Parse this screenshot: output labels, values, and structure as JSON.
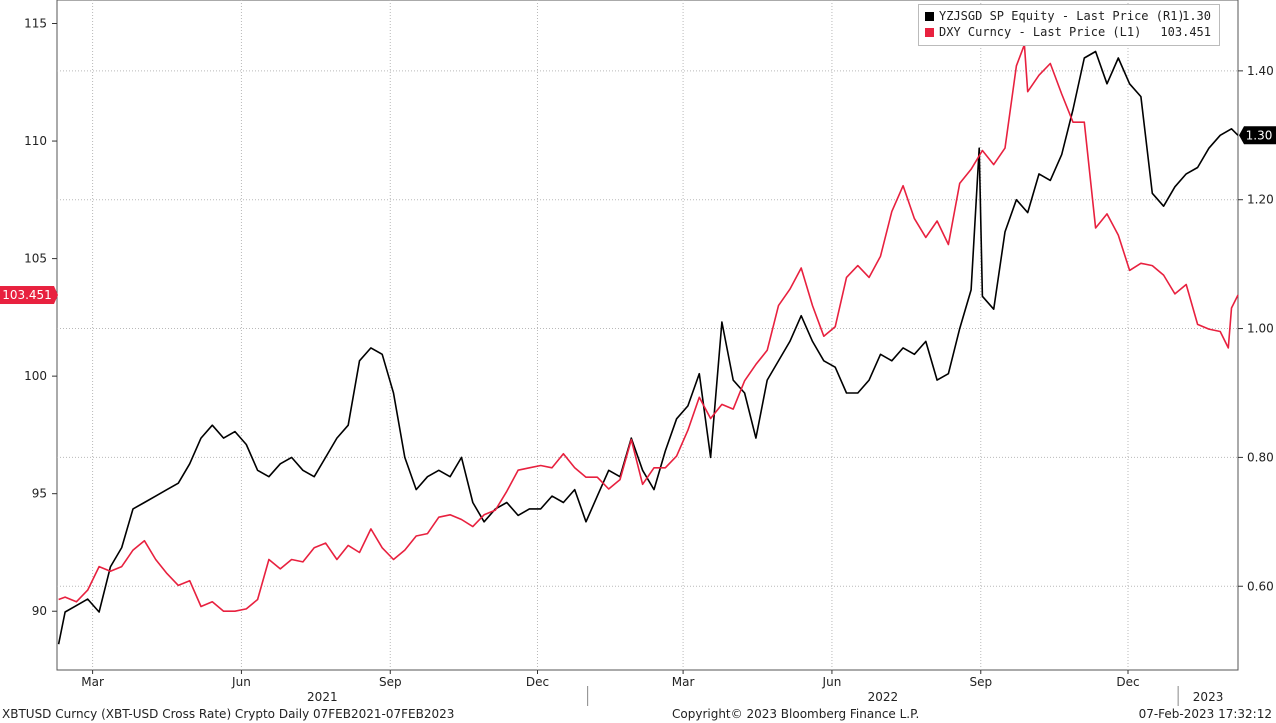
{
  "chart_data": {
    "type": "line",
    "title": "",
    "x_range": [
      "2021-02-07",
      "2023-02-07"
    ],
    "left_axis": {
      "min": 87.5,
      "max": 116,
      "ticks": [
        90,
        95,
        100,
        105,
        110,
        115
      ]
    },
    "right_axis": {
      "min": 0.47,
      "max": 1.51,
      "ticks": [
        0.6,
        0.8,
        1.0,
        1.2,
        1.4
      ]
    },
    "x_month_labels": [
      "Mar",
      "Jun",
      "Sep",
      "Dec",
      "Mar",
      "Jun",
      "Sep",
      "Dec"
    ],
    "x_year_labels": [
      "2021",
      "2022",
      "2023"
    ],
    "grid": true,
    "legend_position": "top-right",
    "last_value_tags": {
      "dxy": "103.451",
      "yzjsgd": "1.30"
    },
    "series": [
      {
        "name": "YZJSGD SP Equity - Last Price (R1)",
        "axis": "right",
        "color": "#000000",
        "last_label": "1.30",
        "points": [
          [
            "2021-02-08",
            0.51
          ],
          [
            "2021-02-12",
            0.56
          ],
          [
            "2021-02-19",
            0.57
          ],
          [
            "2021-02-26",
            0.58
          ],
          [
            "2021-03-05",
            0.56
          ],
          [
            "2021-03-12",
            0.63
          ],
          [
            "2021-03-19",
            0.66
          ],
          [
            "2021-03-26",
            0.72
          ],
          [
            "2021-04-02",
            0.73
          ],
          [
            "2021-04-09",
            0.74
          ],
          [
            "2021-04-16",
            0.75
          ],
          [
            "2021-04-23",
            0.76
          ],
          [
            "2021-04-30",
            0.79
          ],
          [
            "2021-05-07",
            0.83
          ],
          [
            "2021-05-14",
            0.85
          ],
          [
            "2021-05-21",
            0.83
          ],
          [
            "2021-05-28",
            0.84
          ],
          [
            "2021-06-04",
            0.82
          ],
          [
            "2021-06-11",
            0.78
          ],
          [
            "2021-06-18",
            0.77
          ],
          [
            "2021-06-25",
            0.79
          ],
          [
            "2021-07-02",
            0.8
          ],
          [
            "2021-07-09",
            0.78
          ],
          [
            "2021-07-16",
            0.77
          ],
          [
            "2021-07-23",
            0.8
          ],
          [
            "2021-07-30",
            0.83
          ],
          [
            "2021-08-06",
            0.85
          ],
          [
            "2021-08-13",
            0.95
          ],
          [
            "2021-08-20",
            0.97
          ],
          [
            "2021-08-27",
            0.96
          ],
          [
            "2021-09-03",
            0.9
          ],
          [
            "2021-09-10",
            0.8
          ],
          [
            "2021-09-17",
            0.75
          ],
          [
            "2021-09-24",
            0.77
          ],
          [
            "2021-10-01",
            0.78
          ],
          [
            "2021-10-08",
            0.77
          ],
          [
            "2021-10-15",
            0.8
          ],
          [
            "2021-10-22",
            0.73
          ],
          [
            "2021-10-29",
            0.7
          ],
          [
            "2021-11-05",
            0.72
          ],
          [
            "2021-11-12",
            0.73
          ],
          [
            "2021-11-19",
            0.71
          ],
          [
            "2021-11-26",
            0.72
          ],
          [
            "2021-12-03",
            0.72
          ],
          [
            "2021-12-10",
            0.74
          ],
          [
            "2021-12-17",
            0.73
          ],
          [
            "2021-12-24",
            0.75
          ],
          [
            "2021-12-31",
            0.7
          ],
          [
            "2022-01-07",
            0.74
          ],
          [
            "2022-01-14",
            0.78
          ],
          [
            "2022-01-21",
            0.77
          ],
          [
            "2022-01-28",
            0.83
          ],
          [
            "2022-02-04",
            0.78
          ],
          [
            "2022-02-11",
            0.75
          ],
          [
            "2022-02-18",
            0.81
          ],
          [
            "2022-02-25",
            0.86
          ],
          [
            "2022-03-04",
            0.88
          ],
          [
            "2022-03-11",
            0.93
          ],
          [
            "2022-03-18",
            0.8
          ],
          [
            "2022-03-25",
            1.01
          ],
          [
            "2022-04-01",
            0.92
          ],
          [
            "2022-04-08",
            0.9
          ],
          [
            "2022-04-15",
            0.83
          ],
          [
            "2022-04-22",
            0.92
          ],
          [
            "2022-05-06",
            0.98
          ],
          [
            "2022-05-13",
            1.02
          ],
          [
            "2022-05-20",
            0.98
          ],
          [
            "2022-05-27",
            0.95
          ],
          [
            "2022-06-03",
            0.94
          ],
          [
            "2022-06-10",
            0.9
          ],
          [
            "2022-06-17",
            0.9
          ],
          [
            "2022-06-24",
            0.92
          ],
          [
            "2022-07-01",
            0.96
          ],
          [
            "2022-07-08",
            0.95
          ],
          [
            "2022-07-15",
            0.97
          ],
          [
            "2022-07-22",
            0.96
          ],
          [
            "2022-07-29",
            0.98
          ],
          [
            "2022-08-05",
            0.92
          ],
          [
            "2022-08-12",
            0.93
          ],
          [
            "2022-08-19",
            1.0
          ],
          [
            "2022-08-26",
            1.06
          ],
          [
            "2022-08-31",
            1.28
          ],
          [
            "2022-09-02",
            1.05
          ],
          [
            "2022-09-09",
            1.03
          ],
          [
            "2022-09-16",
            1.15
          ],
          [
            "2022-09-23",
            1.2
          ],
          [
            "2022-09-30",
            1.18
          ],
          [
            "2022-10-07",
            1.24
          ],
          [
            "2022-10-14",
            1.23
          ],
          [
            "2022-10-21",
            1.27
          ],
          [
            "2022-10-28",
            1.34
          ],
          [
            "2022-11-04",
            1.42
          ],
          [
            "2022-11-11",
            1.43
          ],
          [
            "2022-11-18",
            1.38
          ],
          [
            "2022-11-25",
            1.42
          ],
          [
            "2022-12-02",
            1.38
          ],
          [
            "2022-12-09",
            1.36
          ],
          [
            "2022-12-16",
            1.21
          ],
          [
            "2022-12-23",
            1.19
          ],
          [
            "2022-12-30",
            1.22
          ],
          [
            "2023-01-06",
            1.24
          ],
          [
            "2023-01-13",
            1.25
          ],
          [
            "2023-01-20",
            1.28
          ],
          [
            "2023-01-27",
            1.3
          ],
          [
            "2023-02-03",
            1.31
          ],
          [
            "2023-02-07",
            1.3
          ]
        ]
      },
      {
        "name": "DXY Curncy - Last Price (L1)",
        "axis": "left",
        "color": "#e8213f",
        "last_label": "103.451",
        "points": [
          [
            "2021-02-08",
            90.5
          ],
          [
            "2021-02-12",
            90.6
          ],
          [
            "2021-02-19",
            90.4
          ],
          [
            "2021-02-26",
            90.9
          ],
          [
            "2021-03-05",
            91.9
          ],
          [
            "2021-03-12",
            91.7
          ],
          [
            "2021-03-19",
            91.9
          ],
          [
            "2021-03-26",
            92.6
          ],
          [
            "2021-04-02",
            93.0
          ],
          [
            "2021-04-09",
            92.2
          ],
          [
            "2021-04-16",
            91.6
          ],
          [
            "2021-04-23",
            91.1
          ],
          [
            "2021-04-30",
            91.3
          ],
          [
            "2021-05-07",
            90.2
          ],
          [
            "2021-05-14",
            90.4
          ],
          [
            "2021-05-21",
            90.0
          ],
          [
            "2021-05-28",
            90.0
          ],
          [
            "2021-06-04",
            90.1
          ],
          [
            "2021-06-11",
            90.5
          ],
          [
            "2021-06-18",
            92.2
          ],
          [
            "2021-06-25",
            91.8
          ],
          [
            "2021-07-02",
            92.2
          ],
          [
            "2021-07-09",
            92.1
          ],
          [
            "2021-07-16",
            92.7
          ],
          [
            "2021-07-23",
            92.9
          ],
          [
            "2021-07-30",
            92.2
          ],
          [
            "2021-08-06",
            92.8
          ],
          [
            "2021-08-13",
            92.5
          ],
          [
            "2021-08-20",
            93.5
          ],
          [
            "2021-08-27",
            92.7
          ],
          [
            "2021-09-03",
            92.2
          ],
          [
            "2021-09-10",
            92.6
          ],
          [
            "2021-09-17",
            93.2
          ],
          [
            "2021-09-24",
            93.3
          ],
          [
            "2021-10-01",
            94.0
          ],
          [
            "2021-10-08",
            94.1
          ],
          [
            "2021-10-15",
            93.9
          ],
          [
            "2021-10-22",
            93.6
          ],
          [
            "2021-10-29",
            94.1
          ],
          [
            "2021-11-05",
            94.3
          ],
          [
            "2021-11-12",
            95.1
          ],
          [
            "2021-11-19",
            96.0
          ],
          [
            "2021-11-26",
            96.1
          ],
          [
            "2021-12-03",
            96.2
          ],
          [
            "2021-12-10",
            96.1
          ],
          [
            "2021-12-17",
            96.7
          ],
          [
            "2021-12-24",
            96.1
          ],
          [
            "2021-12-31",
            95.7
          ],
          [
            "2022-01-07",
            95.7
          ],
          [
            "2022-01-14",
            95.2
          ],
          [
            "2022-01-21",
            95.6
          ],
          [
            "2022-01-28",
            97.3
          ],
          [
            "2022-02-04",
            95.4
          ],
          [
            "2022-02-11",
            96.1
          ],
          [
            "2022-02-18",
            96.1
          ],
          [
            "2022-02-25",
            96.6
          ],
          [
            "2022-03-04",
            97.7
          ],
          [
            "2022-03-11",
            99.1
          ],
          [
            "2022-03-18",
            98.2
          ],
          [
            "2022-03-25",
            98.8
          ],
          [
            "2022-04-01",
            98.6
          ],
          [
            "2022-04-08",
            99.8
          ],
          [
            "2022-04-15",
            100.5
          ],
          [
            "2022-04-22",
            101.1
          ],
          [
            "2022-04-29",
            103.0
          ],
          [
            "2022-05-06",
            103.7
          ],
          [
            "2022-05-13",
            104.6
          ],
          [
            "2022-05-20",
            103.0
          ],
          [
            "2022-05-27",
            101.7
          ],
          [
            "2022-06-03",
            102.1
          ],
          [
            "2022-06-10",
            104.2
          ],
          [
            "2022-06-17",
            104.7
          ],
          [
            "2022-06-24",
            104.2
          ],
          [
            "2022-07-01",
            105.1
          ],
          [
            "2022-07-08",
            107.0
          ],
          [
            "2022-07-15",
            108.1
          ],
          [
            "2022-07-22",
            106.7
          ],
          [
            "2022-07-29",
            105.9
          ],
          [
            "2022-08-05",
            106.6
          ],
          [
            "2022-08-12",
            105.6
          ],
          [
            "2022-08-19",
            108.2
          ],
          [
            "2022-08-26",
            108.8
          ],
          [
            "2022-09-02",
            109.6
          ],
          [
            "2022-09-09",
            109.0
          ],
          [
            "2022-09-16",
            109.7
          ],
          [
            "2022-09-23",
            113.2
          ],
          [
            "2022-09-28",
            114.1
          ],
          [
            "2022-09-30",
            112.1
          ],
          [
            "2022-10-07",
            112.8
          ],
          [
            "2022-10-14",
            113.3
          ],
          [
            "2022-10-21",
            112.0
          ],
          [
            "2022-10-28",
            110.8
          ],
          [
            "2022-11-04",
            110.8
          ],
          [
            "2022-11-11",
            106.3
          ],
          [
            "2022-11-18",
            106.9
          ],
          [
            "2022-11-25",
            106.0
          ],
          [
            "2022-12-02",
            104.5
          ],
          [
            "2022-12-09",
            104.8
          ],
          [
            "2022-12-16",
            104.7
          ],
          [
            "2022-12-23",
            104.3
          ],
          [
            "2022-12-30",
            103.5
          ],
          [
            "2023-01-06",
            103.9
          ],
          [
            "2023-01-13",
            102.2
          ],
          [
            "2023-01-20",
            102.0
          ],
          [
            "2023-01-27",
            101.9
          ],
          [
            "2023-02-01",
            101.2
          ],
          [
            "2023-02-03",
            102.9
          ],
          [
            "2023-02-07",
            103.451
          ]
        ]
      }
    ]
  },
  "legend": {
    "series1_label": "YZJSGD SP Equity - Last Price (R1)",
    "series1_value": "1.30",
    "series2_label": "DXY Curncy - Last Price (L1)",
    "series2_value": "103.451"
  },
  "footer": {
    "left": "XBTUSD Curncy (XBT-USD Cross Rate) Crypto  Daily 07FEB2021-07FEB2023",
    "center": "Copyright© 2023 Bloomberg Finance L.P.",
    "right": "07-Feb-2023 17:32:12"
  },
  "colors": {
    "black_series": "#000000",
    "red_series": "#e8213f",
    "grid": "#b9b9b9"
  }
}
